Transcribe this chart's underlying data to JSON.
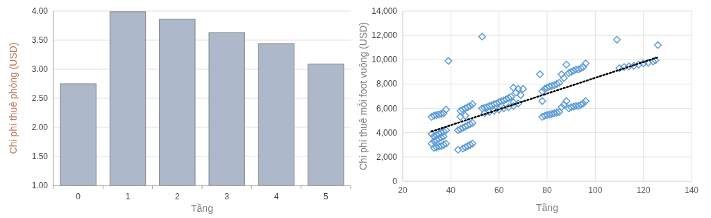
{
  "chart_data": [
    {
      "type": "bar",
      "xlabel": "Tầng",
      "ylabel": "Chi phí thuê phòng (USD)",
      "categories": [
        "0",
        "1",
        "2",
        "3",
        "4",
        "5"
      ],
      "values": [
        2.75,
        3.99,
        3.86,
        3.63,
        3.44,
        3.09
      ],
      "color": "#adb9ca",
      "ylim": [
        1,
        4
      ],
      "yticks": [
        {
          "value": 1,
          "label": "1.00"
        },
        {
          "value": 1.5,
          "label": "1.50"
        },
        {
          "value": 2,
          "label": "2.00"
        },
        {
          "value": 2.5,
          "label": "2.50"
        },
        {
          "value": 3,
          "label": "3.00"
        },
        {
          "value": 3.5,
          "label": "3.50"
        },
        {
          "value": 4,
          "label": "4.00"
        }
      ],
      "grid": "y"
    },
    {
      "type": "scatter",
      "xlabel": "Tầng",
      "ylabel": "Chi phí thuê mỗi foot vuông (USD)",
      "xlim": [
        20,
        140
      ],
      "xticks": [
        20,
        40,
        60,
        80,
        100,
        120,
        140
      ],
      "ylim": [
        0,
        14000
      ],
      "yticks": [
        0,
        {
          "value": 2000,
          "label": "2,000"
        },
        {
          "value": 4000,
          "label": "4,000"
        },
        {
          "value": 6000,
          "label": "6,000"
        },
        {
          "value": 8000,
          "label": "8,000"
        },
        {
          "value": 10000,
          "label": "10,000"
        },
        {
          "value": 12000,
          "label": "12,000"
        },
        {
          "value": 14000,
          "label": "14,000"
        }
      ],
      "grid": true,
      "series": [
        {
          "type": "scatter",
          "color": "#5b9bd5",
          "marker": "diamond",
          "x": [
            32,
            33,
            34,
            35,
            36,
            37,
            38,
            32,
            33,
            34,
            35,
            36,
            37,
            38,
            32,
            33,
            34,
            35,
            36,
            37,
            33,
            34,
            35,
            36,
            37,
            38,
            39,
            44,
            45,
            46,
            47,
            48,
            49,
            44,
            46,
            43,
            44,
            45,
            46,
            47,
            48,
            49,
            43,
            45,
            46,
            47,
            48,
            49,
            53,
            53,
            54,
            55,
            56,
            57,
            58,
            59,
            60,
            61,
            62,
            63,
            64,
            65,
            66,
            67,
            68,
            69,
            70,
            66,
            68,
            54,
            56,
            58,
            60,
            62,
            64,
            66,
            77,
            78,
            79,
            80,
            81,
            82,
            83,
            84,
            85,
            86,
            87,
            88,
            89,
            90,
            91,
            92,
            93,
            94,
            95,
            96,
            78,
            78,
            79,
            80,
            81,
            82,
            83,
            84,
            85,
            86,
            87,
            88,
            89,
            90,
            91,
            92,
            93,
            94,
            95,
            96,
            109,
            110,
            112,
            114,
            116,
            118,
            120,
            122,
            124,
            125,
            126
          ],
          "values": [
            5300,
            5400,
            5450,
            5500,
            5550,
            5600,
            5900,
            3900,
            3700,
            3800,
            3900,
            4000,
            4100,
            4200,
            3100,
            3300,
            3400,
            3500,
            3600,
            3700,
            2750,
            2800,
            2850,
            2900,
            3000,
            3100,
            9900,
            5800,
            5900,
            6000,
            6100,
            6200,
            6350,
            5300,
            5400,
            4200,
            4300,
            4400,
            4500,
            4600,
            4700,
            4800,
            2600,
            2700,
            2800,
            2900,
            3000,
            3100,
            11900,
            6000,
            6050,
            6100,
            6200,
            6250,
            6350,
            6400,
            6500,
            6600,
            6650,
            6750,
            6850,
            6950,
            7700,
            7300,
            7600,
            7100,
            7600,
            6500,
            6400,
            5600,
            5700,
            5800,
            5900,
            6000,
            6100,
            6200,
            8800,
            7400,
            7600,
            7700,
            7800,
            7850,
            7900,
            8000,
            8100,
            8800,
            8500,
            9600,
            8900,
            9000,
            9100,
            9200,
            9200,
            9300,
            9400,
            9700,
            6600,
            5300,
            5400,
            5450,
            5500,
            5550,
            5600,
            5650,
            5700,
            6100,
            6300,
            6600,
            6000,
            6100,
            6150,
            6200,
            6200,
            6300,
            6400,
            6600,
            11650,
            9300,
            9400,
            9450,
            9500,
            9600,
            9700,
            9750,
            9850,
            9950,
            11200
          ]
        },
        {
          "type": "line",
          "color": "#000000",
          "marker": "none",
          "line_style": "dotted",
          "x": [
            32,
            126
          ],
          "values": [
            4100,
            10200
          ]
        }
      ]
    }
  ]
}
